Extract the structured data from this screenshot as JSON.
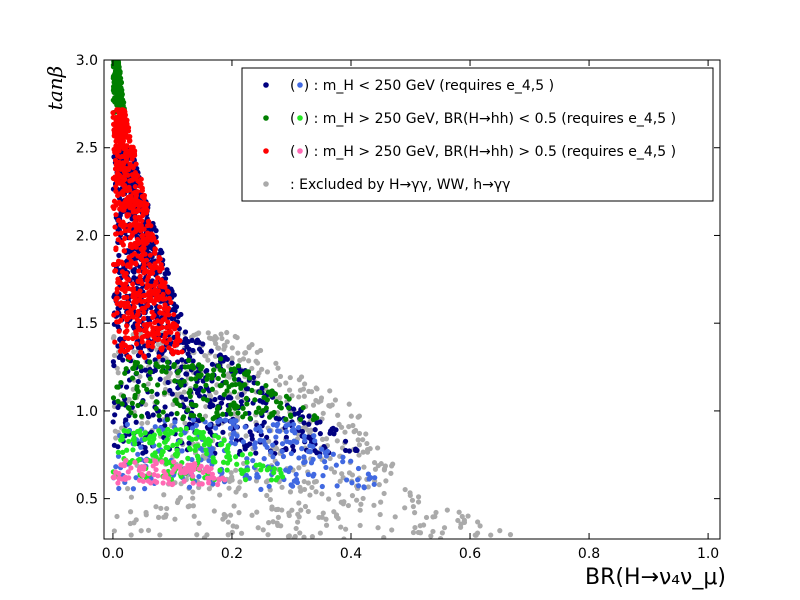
{
  "chart_data": {
    "type": "scatter",
    "xlabel": "BR(H→ν₄ν_μ)",
    "ylabel": "tanβ",
    "xlim": [
      -0.015,
      1.02
    ],
    "ylim": [
      0.27,
      3.0
    ],
    "xticks": [
      "0.0",
      "0.2",
      "0.4",
      "0.6",
      "0.8",
      "1.0"
    ],
    "yticks": [
      "0.5",
      "1.0",
      "1.5",
      "2.0",
      "2.5",
      "3.0"
    ],
    "grid": false,
    "legend_position": "top-right",
    "legend": [
      {
        "marker_color": "#000080",
        "paren_color": "#4169e1",
        "text": "(•) : m_H < 250 GeV (requires e_4,5 )"
      },
      {
        "marker_color": "#007f00",
        "paren_color": "#22e822",
        "text": "(•) : m_H > 250 GeV, BR(H→hh) < 0.5 (requires e_4,5 )"
      },
      {
        "marker_color": "#ff0000",
        "paren_color": "#ff69b4",
        "text": "(•) : m_H > 250 GeV, BR(H→hh) > 0.5 (requires e_4,5 )"
      },
      {
        "marker_color": "#aaaaaa",
        "paren_color": "",
        "text": ": Excluded by H→γγ, WW, h→γγ"
      }
    ],
    "series": [
      {
        "color": "#aaaaaa",
        "regions": [
          {
            "tb_range": [
              0.27,
              0.55
            ],
            "br_max": [
              0.69,
              0.5
            ]
          },
          {
            "tb_range": [
              0.55,
              1.05
            ],
            "br_max": [
              0.5,
              0.4
            ]
          },
          {
            "tb_range": [
              1.05,
              1.45
            ],
            "br_max": [
              0.4,
              0.2
            ]
          }
        ]
      },
      {
        "color": "#000080",
        "regions": [
          {
            "tb_range": [
              0.75,
              0.95
            ],
            "br_max": [
              0.45,
              0.35
            ]
          },
          {
            "tb_range": [
              0.95,
              1.5
            ],
            "br_max": [
              0.35,
              0.1
            ]
          },
          {
            "tb_range": [
              1.5,
              2.5
            ],
            "br_max": [
              0.12,
              0.03
            ]
          }
        ]
      },
      {
        "color": "#4169e1",
        "regions": [
          {
            "tb_range": [
              0.55,
              0.95
            ],
            "br_max": [
              0.47,
              0.3
            ]
          }
        ]
      },
      {
        "color": "#007f00",
        "regions": [
          {
            "tb_range": [
              0.95,
              1.3
            ],
            "br_max": [
              0.35,
              0.2
            ]
          },
          {
            "tb_range": [
              2.7,
              3.0
            ],
            "br_max": [
              0.02,
              0.01
            ]
          }
        ]
      },
      {
        "color": "#22e822",
        "regions": [
          {
            "tb_range": [
              0.6,
              0.9
            ],
            "br_max": [
              0.32,
              0.15
            ]
          }
        ]
      },
      {
        "color": "#ff0000",
        "regions": [
          {
            "tb_range": [
              1.3,
              2.72
            ],
            "br_max": [
              0.12,
              0.02
            ]
          }
        ]
      },
      {
        "color": "#ff69b4",
        "regions": [
          {
            "tb_range": [
              0.58,
              0.72
            ],
            "br_max": [
              0.2,
              0.15
            ]
          }
        ]
      }
    ]
  }
}
